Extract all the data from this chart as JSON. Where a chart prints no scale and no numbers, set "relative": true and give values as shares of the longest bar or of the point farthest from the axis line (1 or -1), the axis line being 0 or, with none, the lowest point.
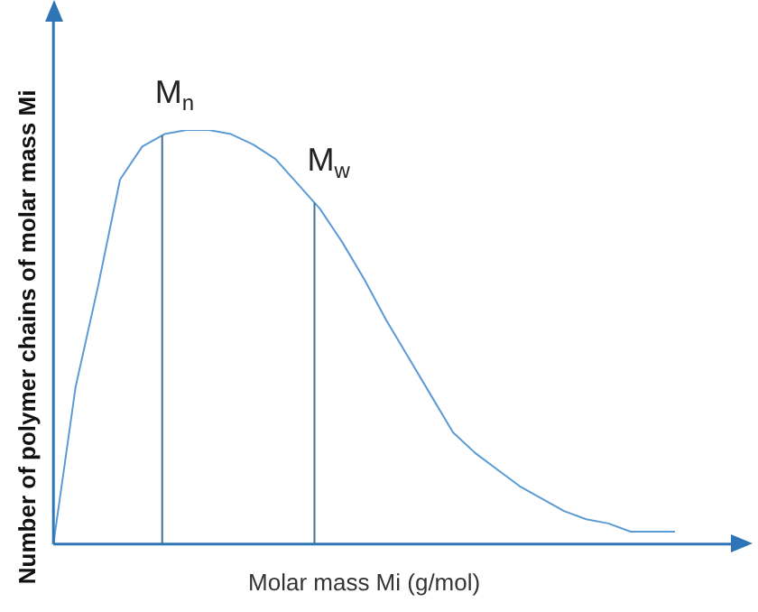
{
  "chart_data": {
    "type": "line",
    "relative": true,
    "xlabel": "Molar mass Mi (g/mol)",
    "ylabel": "Number of polymer chains of molar mass Mi",
    "grid": false,
    "legend": false,
    "marker": "none",
    "line_style": "solid",
    "categories": [
      null,
      null,
      null,
      null,
      null,
      null,
      null,
      null,
      null,
      null,
      null,
      null,
      null,
      null,
      null,
      null,
      null,
      null,
      null,
      null,
      null,
      null,
      null,
      null,
      null,
      null,
      null,
      null,
      null
    ],
    "series": [
      {
        "color": "#5b9bd5",
        "values": [
          0,
          0.38,
          0.62,
          0.88,
          0.96,
          0.99,
          1,
          1,
          0.99,
          0.965,
          0.93,
          0.87,
          0.81,
          0.73,
          0.64,
          0.54,
          0.45,
          0.36,
          0.27,
          0.22,
          0.18,
          0.14,
          0.11,
          0.08,
          0.06,
          0.05,
          0.03,
          0.03,
          0.03
        ]
      }
    ],
    "annotations": [
      "M$_{n}$",
      "M$_{w}$"
    ]
  }
}
